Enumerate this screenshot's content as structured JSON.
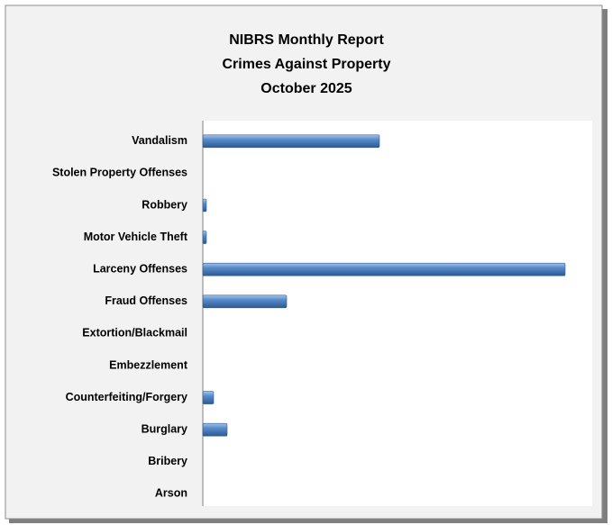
{
  "chart_data": {
    "type": "hbar",
    "title": [
      "NIBRS Monthly Report",
      "Crimes Against Property",
      "October 2025"
    ],
    "categories": [
      "Vandalism",
      "Stolen Property Offenses",
      "Robbery",
      "Motor Vehicle Theft",
      "Larceny Offenses",
      "Fraud Offenses",
      "Extortion/Blackmail",
      "Embezzlement",
      "Counterfeiting/Forgery",
      "Burglary",
      "Bribery",
      "Arson"
    ],
    "values": [
      196,
      0,
      4,
      4,
      402,
      93,
      0,
      0,
      12,
      27,
      0,
      0
    ],
    "color": "#4f81bd",
    "xlim": [
      0,
      432
    ]
  }
}
